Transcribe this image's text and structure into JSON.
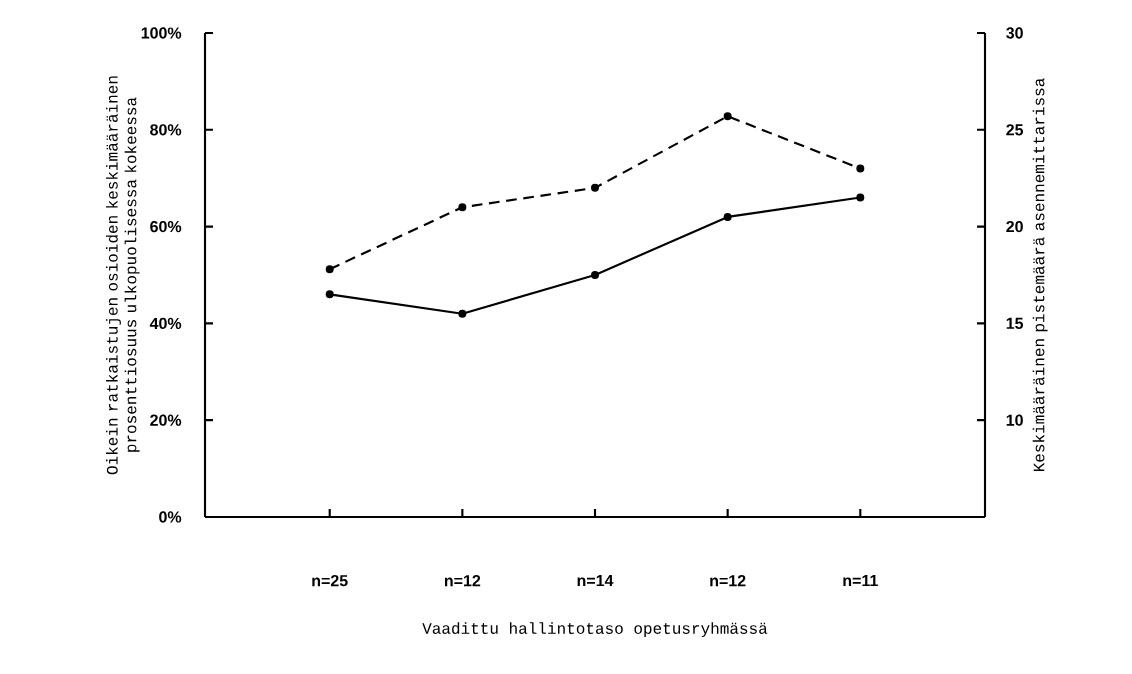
{
  "chart_data": {
    "type": "line",
    "xlabel": "Vaadittu hallintotaso opetusryhmässä",
    "ylabel": "Oikein ratkaistujen osioiden keskimääräinen prosenttiosuus ulkopuolisessa kokeessa",
    "y2label": "Keskimääräinen pistemäärä asennemittarissa",
    "categories": [
      "n=25",
      "n=12",
      "n=14",
      "n=12",
      "n=11"
    ],
    "series": [
      {
        "color": "#000000",
        "line_style": "solid",
        "values": [
          46,
          42,
          50,
          62,
          66
        ]
      },
      {
        "color": "#000000",
        "line_style": "dashed",
        "axis": "y2",
        "values": [
          17.8,
          21,
          22,
          25.7,
          23
        ]
      }
    ],
    "ylim": [
      0,
      100
    ],
    "yticks": [
      {
        "value": 0,
        "label": "0%"
      },
      {
        "value": 20,
        "label": "20%"
      },
      {
        "value": 40,
        "label": "40%"
      },
      {
        "value": 60,
        "label": "60%"
      },
      {
        "value": 80,
        "label": "80%"
      },
      {
        "value": 100,
        "label": "100%"
      }
    ],
    "y2lim": [
      5,
      30
    ],
    "y2ticks": [
      10,
      15,
      20,
      25,
      30
    ],
    "marker": "circle",
    "grid": false
  }
}
